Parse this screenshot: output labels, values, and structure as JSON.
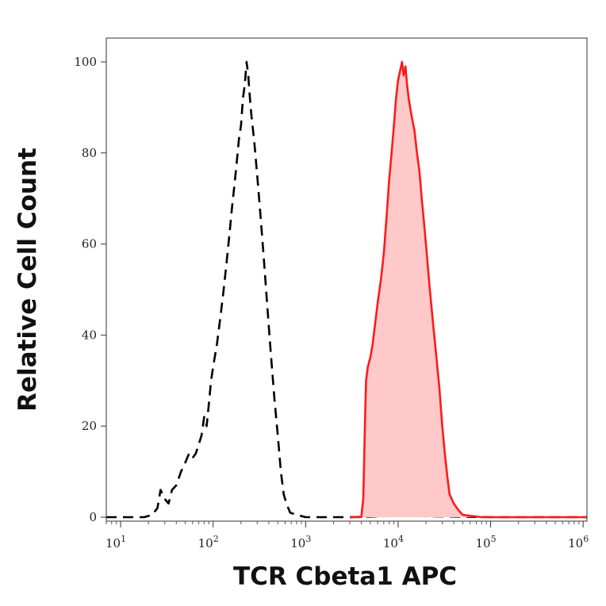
{
  "chart_data": {
    "type": "area",
    "xlabel": "TCR Cbeta1 APC",
    "ylabel": "Relative Cell Count",
    "x_scale": "log",
    "xlim": [
      7,
      1100000
    ],
    "ylim": [
      0,
      100
    ],
    "y_ticks": [
      0,
      20,
      40,
      60,
      80,
      100
    ],
    "x_ticks": [
      {
        "value": 10,
        "base": "10",
        "exp": "1"
      },
      {
        "value": 100,
        "base": "10",
        "exp": "2"
      },
      {
        "value": 1000,
        "base": "10",
        "exp": "3"
      },
      {
        "value": 10000,
        "base": "10",
        "exp": "4"
      },
      {
        "value": 100000,
        "base": "10",
        "exp": "5"
      },
      {
        "value": 1000000,
        "base": "10",
        "exp": "6"
      }
    ],
    "grid": false,
    "legend": "none",
    "series": [
      {
        "style": "dashed",
        "color": "#000000",
        "filled": false,
        "points": [
          [
            7,
            0
          ],
          [
            12,
            0
          ],
          [
            18,
            0
          ],
          [
            22,
            0.5
          ],
          [
            25,
            2
          ],
          [
            27,
            6
          ],
          [
            30,
            4
          ],
          [
            33,
            3
          ],
          [
            36,
            6
          ],
          [
            40,
            7
          ],
          [
            45,
            10
          ],
          [
            50,
            12
          ],
          [
            55,
            14
          ],
          [
            60,
            13
          ],
          [
            65,
            14
          ],
          [
            70,
            16
          ],
          [
            75,
            18
          ],
          [
            80,
            22
          ],
          [
            85,
            20
          ],
          [
            90,
            25
          ],
          [
            95,
            30
          ],
          [
            100,
            33
          ],
          [
            110,
            38
          ],
          [
            120,
            44
          ],
          [
            130,
            50
          ],
          [
            140,
            56
          ],
          [
            150,
            62
          ],
          [
            160,
            68
          ],
          [
            170,
            73
          ],
          [
            180,
            78
          ],
          [
            190,
            83
          ],
          [
            200,
            86
          ],
          [
            210,
            92
          ],
          [
            220,
            95
          ],
          [
            230,
            100
          ],
          [
            240,
            97
          ],
          [
            250,
            92
          ],
          [
            260,
            88
          ],
          [
            270,
            85
          ],
          [
            280,
            82
          ],
          [
            300,
            75
          ],
          [
            320,
            68
          ],
          [
            350,
            58
          ],
          [
            380,
            48
          ],
          [
            420,
            36
          ],
          [
            460,
            26
          ],
          [
            500,
            18
          ],
          [
            540,
            10
          ],
          [
            580,
            5
          ],
          [
            620,
            3
          ],
          [
            680,
            1
          ],
          [
            800,
            0.5
          ],
          [
            1000,
            0
          ],
          [
            1500,
            0
          ],
          [
            3000,
            0
          ],
          [
            10000,
            0.3
          ],
          [
            100000,
            0
          ],
          [
            1100000,
            0
          ]
        ]
      },
      {
        "style": "solid",
        "color": "#ff1a1a",
        "fill": "#ffc9c9",
        "filled": true,
        "points": [
          [
            3000,
            0
          ],
          [
            4000,
            0
          ],
          [
            4200,
            4
          ],
          [
            4400,
            22
          ],
          [
            4500,
            30
          ],
          [
            4700,
            33
          ],
          [
            5000,
            35
          ],
          [
            5300,
            38
          ],
          [
            5600,
            42
          ],
          [
            6000,
            47
          ],
          [
            6500,
            52
          ],
          [
            7000,
            58
          ],
          [
            7500,
            66
          ],
          [
            8000,
            74
          ],
          [
            8500,
            80
          ],
          [
            9000,
            86
          ],
          [
            9500,
            92
          ],
          [
            10000,
            96
          ],
          [
            10500,
            98
          ],
          [
            11000,
            100
          ],
          [
            11500,
            97
          ],
          [
            12000,
            99
          ],
          [
            12500,
            95
          ],
          [
            13000,
            92
          ],
          [
            14000,
            88
          ],
          [
            15000,
            85
          ],
          [
            16000,
            80
          ],
          [
            17000,
            76
          ],
          [
            18000,
            70
          ],
          [
            19000,
            65
          ],
          [
            20000,
            60
          ],
          [
            22000,
            50
          ],
          [
            24000,
            42
          ],
          [
            26000,
            35
          ],
          [
            28000,
            28
          ],
          [
            30000,
            20
          ],
          [
            32000,
            14
          ],
          [
            34000,
            9
          ],
          [
            36000,
            5
          ],
          [
            40000,
            3
          ],
          [
            45000,
            1.5
          ],
          [
            50000,
            0.5
          ],
          [
            60000,
            0.3
          ],
          [
            80000,
            0
          ],
          [
            1100000,
            0
          ]
        ]
      }
    ]
  }
}
